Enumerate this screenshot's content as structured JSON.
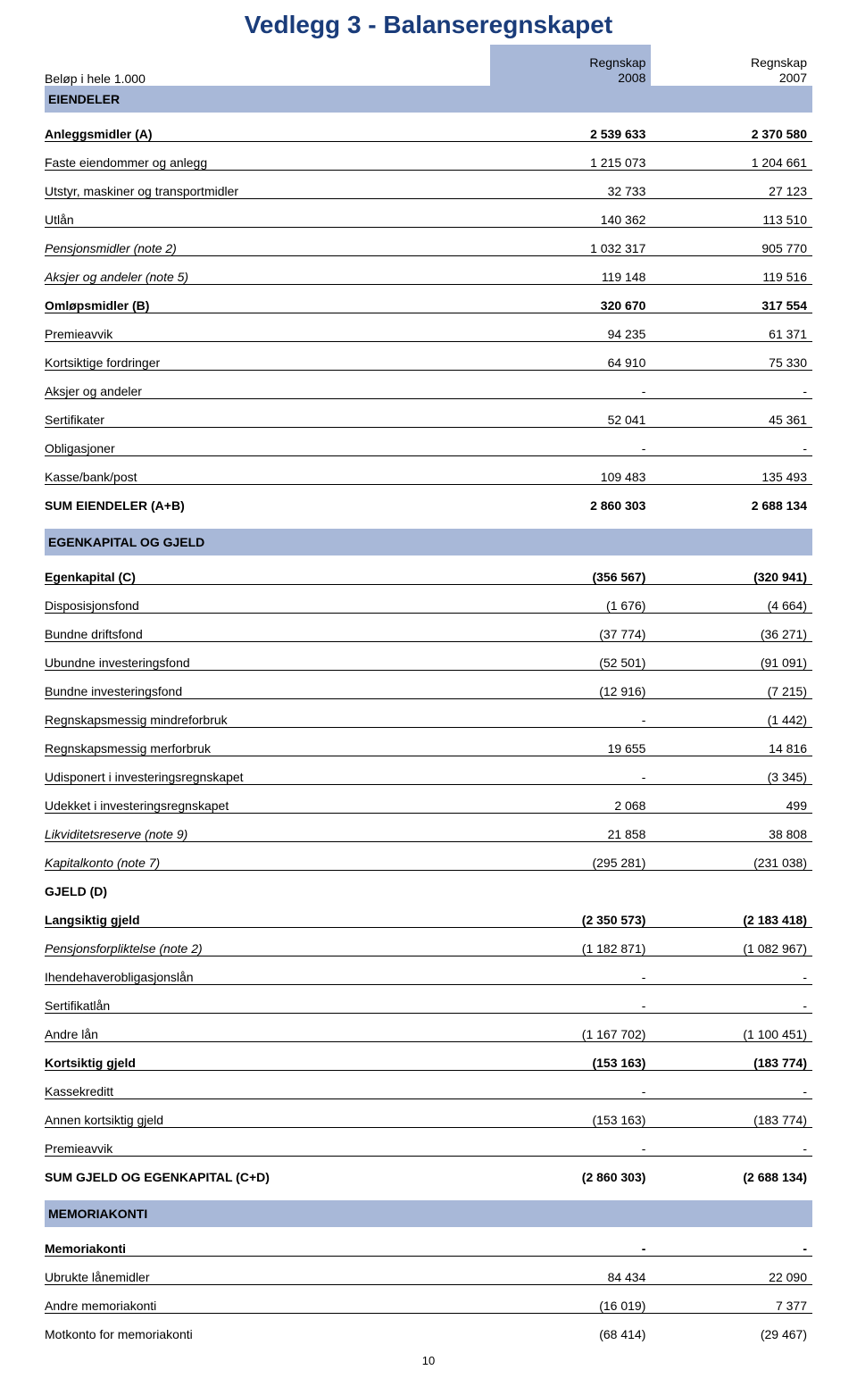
{
  "title": "Vedlegg 3 - Balanseregnskapet",
  "header": {
    "left": "Beløp i hele 1.000",
    "col1_top": "Regnskap",
    "col1_bot": "2008",
    "col2_top": "Regnskap",
    "col2_bot": "2007"
  },
  "s1_label": "EIENDELER",
  "t1": [
    {
      "label": "Anleggsmidler (A)",
      "v1": "2 539 633",
      "v2": "2 370 580",
      "cls": "bold-row"
    },
    {
      "label": "Faste eiendommer og anlegg",
      "v1": "1 215 073",
      "v2": "1 204 661",
      "cls": "plain-row"
    },
    {
      "label": "Utstyr, maskiner og transportmidler",
      "v1": "32 733",
      "v2": "27 123",
      "cls": "plain-row"
    },
    {
      "label": "Utlån",
      "v1": "140 362",
      "v2": "113 510",
      "cls": "plain-row"
    },
    {
      "label": "Pensjonsmidler (note 2)",
      "v1": "1 032 317",
      "v2": "905 770",
      "cls": "plain-row",
      "italic": true
    },
    {
      "label": "Aksjer og andeler (note 5)",
      "v1": "119 148",
      "v2": "119 516",
      "cls": "plain-row",
      "italic": true
    },
    {
      "label": "Omløpsmidler (B)",
      "v1": "320 670",
      "v2": "317 554",
      "cls": "bold-row"
    },
    {
      "label": "Premieavvik",
      "v1": "94 235",
      "v2": "61 371",
      "cls": "plain-row"
    },
    {
      "label": "Kortsiktige fordringer",
      "v1": "64 910",
      "v2": "75 330",
      "cls": "plain-row"
    },
    {
      "label": "Aksjer og andeler",
      "v1": "-",
      "v2": "-",
      "cls": "plain-row"
    },
    {
      "label": "Sertifikater",
      "v1": "52 041",
      "v2": "45 361",
      "cls": "plain-row"
    },
    {
      "label": "Obligasjoner",
      "v1": "-",
      "v2": "-",
      "cls": "plain-row"
    },
    {
      "label": "Kasse/bank/post",
      "v1": "109 483",
      "v2": "135 493",
      "cls": "plain-row"
    },
    {
      "label": "SUM EIENDELER (A+B)",
      "v1": "2 860 303",
      "v2": "2 688 134",
      "cls": "sum-row"
    }
  ],
  "s2_label": "EGENKAPITAL OG GJELD",
  "t2": [
    {
      "label": "Egenkapital (C)",
      "v1": "(356 567)",
      "v2": "(320 941)",
      "cls": "bold-row"
    },
    {
      "label": "Disposisjonsfond",
      "v1": "(1 676)",
      "v2": "(4 664)",
      "cls": "plain-row"
    },
    {
      "label": "Bundne driftsfond",
      "v1": "(37 774)",
      "v2": "(36 271)",
      "cls": "plain-row"
    },
    {
      "label": "Ubundne investeringsfond",
      "v1": "(52 501)",
      "v2": "(91 091)",
      "cls": "plain-row"
    },
    {
      "label": "Bundne investeringsfond",
      "v1": "(12 916)",
      "v2": "(7 215)",
      "cls": "plain-row"
    },
    {
      "label": "Regnskapsmessig mindreforbruk",
      "v1": "-",
      "v2": "(1 442)",
      "cls": "plain-row"
    },
    {
      "label": "Regnskapsmessig merforbruk",
      "v1": "19 655",
      "v2": "14 816",
      "cls": "plain-row"
    },
    {
      "label": "Udisponert i investeringsregnskapet",
      "v1": "-",
      "v2": "(3 345)",
      "cls": "plain-row"
    },
    {
      "label": "Udekket i investeringsregnskapet",
      "v1": "2 068",
      "v2": "499",
      "cls": "plain-row"
    },
    {
      "label": "Likviditetsreserve (note 9)",
      "v1": "21 858",
      "v2": "38 808",
      "cls": "plain-row",
      "italic": true
    },
    {
      "label": "Kapitalkonto (note 7)",
      "v1": "(295 281)",
      "v2": "(231 038)",
      "cls": "plain-row",
      "italic": true
    },
    {
      "label": "GJELD (D)",
      "v1": "",
      "v2": "",
      "cls": "sec-label"
    },
    {
      "label": "Langsiktig gjeld",
      "v1": "(2 350 573)",
      "v2": "(2 183 418)",
      "cls": "bold-row"
    },
    {
      "label": "Pensjonsforpliktelse (note 2)",
      "v1": "(1 182 871)",
      "v2": "(1 082 967)",
      "cls": "plain-row",
      "italic": true
    },
    {
      "label": "Ihendehaverobligasjonslån",
      "v1": "-",
      "v2": "-",
      "cls": "plain-row"
    },
    {
      "label": "Sertifikatlån",
      "v1": "-",
      "v2": "-",
      "cls": "plain-row"
    },
    {
      "label": "Andre lån",
      "v1": "(1 167 702)",
      "v2": "(1 100 451)",
      "cls": "plain-row"
    },
    {
      "label": "Kortsiktig gjeld",
      "v1": "(153 163)",
      "v2": "(183 774)",
      "cls": "bold-row"
    },
    {
      "label": "Kassekreditt",
      "v1": "-",
      "v2": "-",
      "cls": "plain-row"
    },
    {
      "label": "Annen kortsiktig gjeld",
      "v1": "(153 163)",
      "v2": "(183 774)",
      "cls": "plain-row"
    },
    {
      "label": "Premieavvik",
      "v1": "-",
      "v2": "-",
      "cls": "plain-row"
    },
    {
      "label": "SUM GJELD OG EGENKAPITAL (C+D)",
      "v1": "(2 860 303)",
      "v2": "(2 688 134)",
      "cls": "sum-row"
    }
  ],
  "s3_label": "MEMORIAKONTI",
  "t3": [
    {
      "label": "Memoriakonti",
      "v1": "-",
      "v2": "-",
      "cls": "bold-row"
    },
    {
      "label": "Ubrukte lånemidler",
      "v1": "84 434",
      "v2": "22 090",
      "cls": "plain-row"
    },
    {
      "label": "Andre memoriakonti",
      "v1": "(16 019)",
      "v2": "7 377",
      "cls": "plain-row"
    },
    {
      "label": "Motkonto for memoriakonti",
      "v1": "(68 414)",
      "v2": "(29 467)",
      "cls": "plain-row no-border"
    }
  ],
  "page_num": "10",
  "colors": {
    "title": "#1a3c7a",
    "section_bg": "#a8b8d8",
    "border": "#000000",
    "text": "#000000",
    "bg": "#ffffff"
  }
}
